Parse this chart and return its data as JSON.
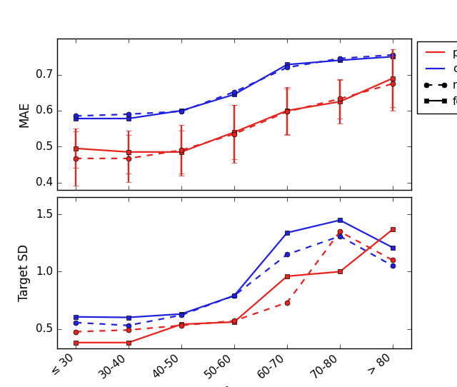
{
  "x_labels": [
    "≤ 30",
    "30-40",
    "40-50",
    "50-60",
    "60-70",
    "70-80",
    "> 80"
  ],
  "x": [
    0,
    1,
    2,
    3,
    4,
    5,
    6
  ],
  "mae_pot_male": [
    0.467,
    0.467,
    0.49,
    0.535,
    0.597,
    0.633,
    0.675
  ],
  "mae_pot_female": [
    0.495,
    0.485,
    0.485,
    0.54,
    0.6,
    0.625,
    0.69
  ],
  "mae_pot_male_err": [
    0.075,
    0.065,
    0.07,
    0.08,
    0.065,
    0.055,
    0.075
  ],
  "mae_pot_female_err": [
    0.055,
    0.06,
    0.06,
    0.075,
    0.065,
    0.06,
    0.08
  ],
  "mae_cal_male": [
    0.585,
    0.59,
    0.598,
    0.652,
    0.72,
    0.745,
    0.755
  ],
  "mae_cal_female": [
    0.578,
    0.578,
    0.6,
    0.645,
    0.728,
    0.74,
    0.75
  ],
  "sd_pot_male": [
    0.475,
    0.49,
    0.53,
    0.57,
    0.73,
    1.35,
    1.1
  ],
  "sd_pot_female": [
    0.38,
    0.38,
    0.54,
    0.56,
    0.96,
    1.0,
    1.37
  ],
  "sd_cal_male": [
    0.555,
    0.53,
    0.62,
    0.79,
    1.15,
    1.31,
    1.05
  ],
  "sd_cal_female": [
    0.605,
    0.6,
    0.63,
    0.79,
    1.34,
    1.45,
    1.21
  ],
  "red": "#e8221e",
  "blue": "#2020e0",
  "mae_ylim": [
    0.38,
    0.8
  ],
  "mae_yticks": [
    0.4,
    0.5,
    0.6,
    0.7
  ],
  "sd_ylim": [
    0.33,
    1.65
  ],
  "sd_yticks": [
    0.5,
    1.0,
    1.5
  ],
  "label_fontsize": 12,
  "tick_fontsize": 11,
  "legend_fontsize": 11,
  "marker_size": 5,
  "line_width": 1.6,
  "capsize": 3
}
